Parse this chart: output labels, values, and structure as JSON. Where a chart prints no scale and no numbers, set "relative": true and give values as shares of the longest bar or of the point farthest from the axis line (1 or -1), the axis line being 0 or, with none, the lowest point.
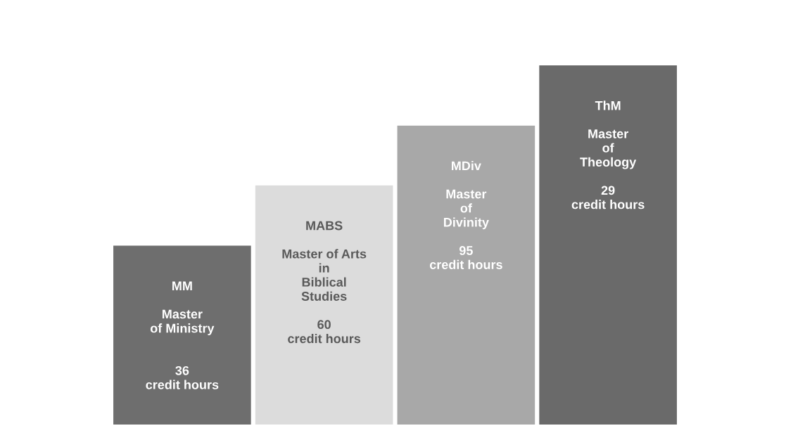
{
  "chart_data": {
    "type": "bar",
    "relative": true,
    "categories": [
      "MM\n\nMaster\nof Ministry\n\n\n36\ncredit hours",
      "MABS\n\nMaster of Arts\nin\nBiblical\nStudies\n\n60\ncredit hours",
      "MDiv\n\nMaster\nof\nDivinity\n\n95\ncredit hours",
      "ThM\n\nMaster\nof\nTheology\n\n29\ncredit hours"
    ],
    "values": [
      0.5,
      0.667,
      0.833,
      1.0
    ],
    "colors": [
      "#6e6e6e",
      "#dcdcdc",
      "#a8a8a8",
      "#6a6a6a"
    ],
    "legend": false
  }
}
